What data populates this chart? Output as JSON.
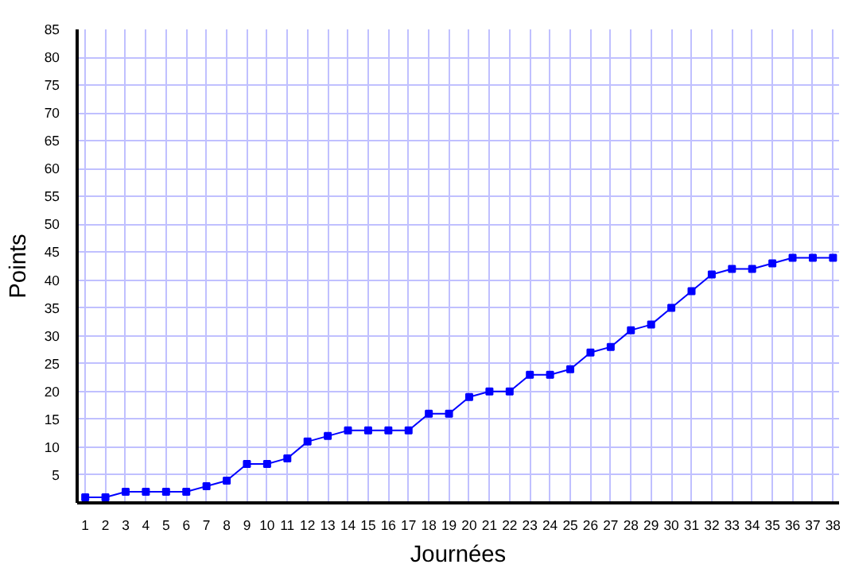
{
  "chart_data": {
    "type": "line",
    "xlabel": "Journées",
    "ylabel": "Points",
    "x": [
      1,
      2,
      3,
      4,
      5,
      6,
      7,
      8,
      9,
      10,
      11,
      12,
      13,
      14,
      15,
      16,
      17,
      18,
      19,
      20,
      21,
      22,
      23,
      24,
      25,
      26,
      27,
      28,
      29,
      30,
      31,
      32,
      33,
      34,
      35,
      36,
      37,
      38
    ],
    "series": [
      {
        "color": "#0000ff",
        "values": [
          1,
          1,
          2,
          2,
          2,
          2,
          3,
          4,
          7,
          7,
          8,
          11,
          12,
          13,
          13,
          13,
          13,
          16,
          16,
          19,
          20,
          20,
          23,
          23,
          24,
          27,
          28,
          31,
          32,
          35,
          38,
          41,
          42,
          42,
          43,
          44,
          44,
          44
        ]
      }
    ],
    "xlim": [
      0.6,
      38.3
    ],
    "xticks": [
      1,
      2,
      3,
      4,
      5,
      6,
      7,
      8,
      9,
      10,
      11,
      12,
      13,
      14,
      15,
      16,
      17,
      18,
      19,
      20,
      21,
      22,
      23,
      24,
      25,
      26,
      27,
      28,
      29,
      30,
      31,
      32,
      33,
      34,
      35,
      36,
      37,
      38
    ],
    "ylim": [
      0,
      85
    ],
    "yticks": [
      5,
      10,
      15,
      20,
      25,
      30,
      35,
      40,
      45,
      50,
      55,
      60,
      65,
      70,
      75,
      80,
      85
    ],
    "grid": true,
    "marker": "square",
    "line_style": "solid"
  }
}
